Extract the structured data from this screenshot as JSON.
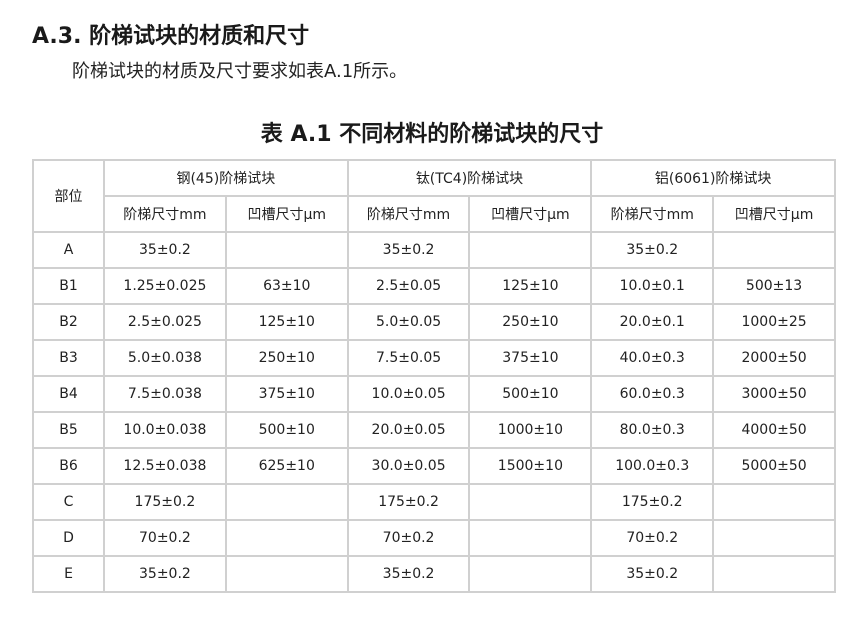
{
  "heading": "A.3. 阶梯试块的材质和尺寸",
  "paragraph": "阶梯试块的材质及尺寸要求如表A.1所示。",
  "caption": "表 A.1   不同材料的阶梯试块的尺寸",
  "table": {
    "part_header": "部位",
    "groups": [
      "钢(45)阶梯试块",
      "钛(TC4)阶梯试块",
      "铝(6061)阶梯试块"
    ],
    "subheaders": [
      "阶梯尺寸mm",
      "凹槽尺寸μm",
      "阶梯尺寸mm",
      "凹槽尺寸μm",
      "阶梯尺寸mm",
      "凹槽尺寸μm"
    ],
    "rows": [
      [
        "A",
        "35±0.2",
        "",
        "35±0.2",
        "",
        "35±0.2",
        ""
      ],
      [
        "B1",
        "1.25±0.025",
        "63±10",
        "2.5±0.05",
        "125±10",
        "10.0±0.1",
        "500±13"
      ],
      [
        "B2",
        "2.5±0.025",
        "125±10",
        "5.0±0.05",
        "250±10",
        "20.0±0.1",
        "1000±25"
      ],
      [
        "B3",
        "5.0±0.038",
        "250±10",
        "7.5±0.05",
        "375±10",
        "40.0±0.3",
        "2000±50"
      ],
      [
        "B4",
        "7.5±0.038",
        "375±10",
        "10.0±0.05",
        "500±10",
        "60.0±0.3",
        "3000±50"
      ],
      [
        "B5",
        "10.0±0.038",
        "500±10",
        "20.0±0.05",
        "1000±10",
        "80.0±0.3",
        "4000±50"
      ],
      [
        "B6",
        "12.5±0.038",
        "625±10",
        "30.0±0.05",
        "1500±10",
        "100.0±0.3",
        "5000±50"
      ],
      [
        "C",
        "175±0.2",
        "",
        "175±0.2",
        "",
        "175±0.2",
        ""
      ],
      [
        "D",
        "70±0.2",
        "",
        "70±0.2",
        "",
        "70±0.2",
        ""
      ],
      [
        "E",
        "35±0.2",
        "",
        "35±0.2",
        "",
        "35±0.2",
        ""
      ]
    ]
  }
}
